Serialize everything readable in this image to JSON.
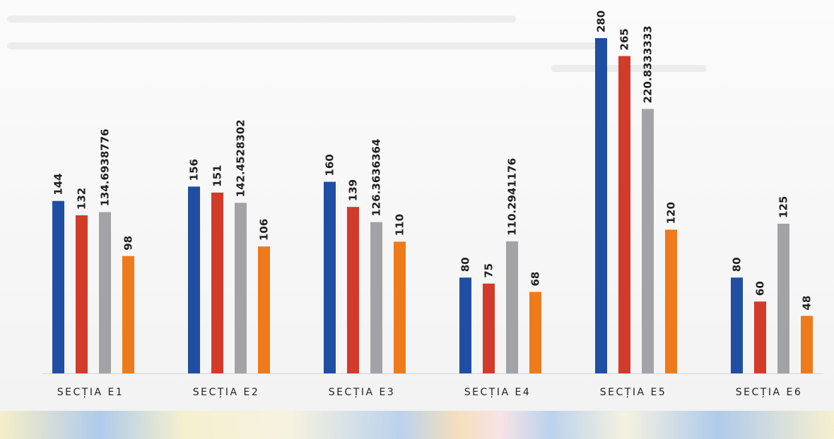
{
  "chart_data": {
    "type": "bar",
    "categories": [
      "SECȚIA E1",
      "SECȚIA E2",
      "SECȚIA E3",
      "SECȚIA E4",
      "SECȚIA E5",
      "SECȚIA E6"
    ],
    "series": [
      {
        "color": "#1f4ea3",
        "values": [
          144,
          156,
          160,
          80,
          280,
          80
        ],
        "labels": [
          "144",
          "156",
          "160",
          "80",
          "280",
          "80"
        ]
      },
      {
        "color": "#d23a2a",
        "values": [
          132,
          151,
          139,
          75,
          265,
          60
        ],
        "labels": [
          "132",
          "151",
          "139",
          "75",
          "265",
          "60"
        ]
      },
      {
        "color": "#a3a3a7",
        "values": [
          134.6938776,
          142.4528302,
          126.3636364,
          110.2941176,
          220.8333333,
          125
        ],
        "labels": [
          "134.6938776",
          "142.4528302",
          "126.3636364",
          "110.2941176",
          "220.8333333",
          "125"
        ]
      },
      {
        "color": "#ee7a1c",
        "values": [
          98,
          106,
          110,
          68,
          120,
          48
        ],
        "labels": [
          "98",
          "106",
          "110",
          "68",
          "120",
          "48"
        ]
      }
    ],
    "title": "",
    "xlabel": "",
    "ylabel": "",
    "ylim": [
      0,
      280
    ],
    "grid": false,
    "legend": "none"
  }
}
